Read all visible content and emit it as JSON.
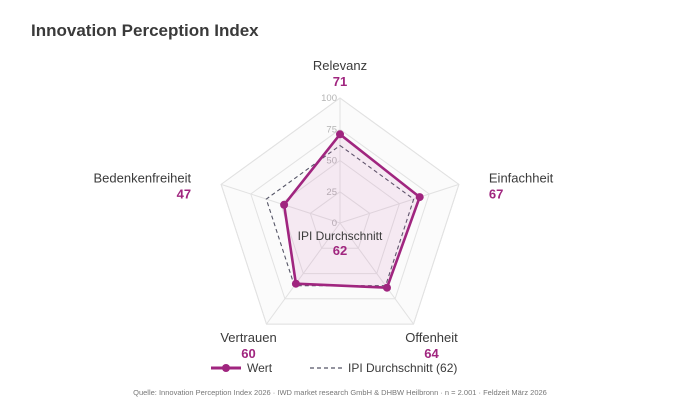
{
  "title": "Innovation Perception Index",
  "chart_data": {
    "type": "radar",
    "categories": [
      "Relevanz",
      "Einfachheit",
      "Offenheit",
      "Vertrauen",
      "Bedenkenfreiheit"
    ],
    "series": [
      {
        "name": "Wert",
        "values": [
          71,
          67,
          64,
          60,
          47
        ],
        "color": "#a0257f",
        "style": "solid-with-markers"
      },
      {
        "name": "IPI Durchschnitt (62)",
        "values": [
          62,
          62,
          62,
          62,
          62
        ],
        "color": "#555566",
        "style": "dashed"
      }
    ],
    "range": [
      0,
      100
    ],
    "ticks": [
      0,
      25,
      50,
      75,
      100
    ],
    "center_label": "IPI Durchschnitt",
    "center_value": "62",
    "legend_position": "bottom",
    "grid": true
  },
  "legend": {
    "series_label": "Wert",
    "average_label": "IPI Durchschnitt (62)"
  },
  "footer": "Quelle: Innovation Perception Index 2026 · IWD market research GmbH & DHBW Heilbronn · n = 2.001 · Feldzeit März 2026"
}
